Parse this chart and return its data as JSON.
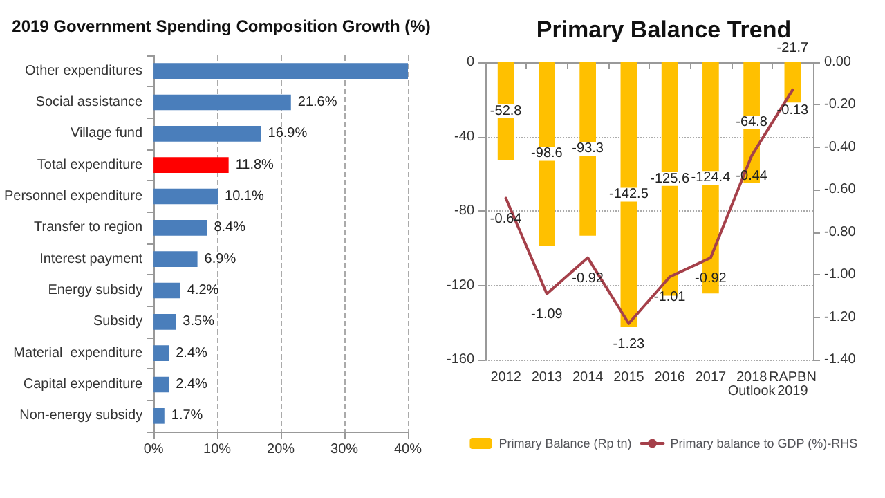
{
  "chart_data": [
    {
      "type": "bar",
      "title": "2019 Government Spending Composition Growth (%)",
      "orientation": "horizontal",
      "categories": [
        "Other expenditures",
        "Social assistance",
        "Village fund",
        "Total expenditure",
        "Personnel expenditure",
        "Transfer to region",
        "Interest payment",
        "Energy subsidy",
        "Subsidy",
        "Material  expenditure",
        "Capital expenditure",
        "Non-energy subsidy"
      ],
      "values": [
        40,
        21.6,
        16.9,
        11.8,
        10.1,
        8.4,
        6.9,
        4.2,
        3.5,
        2.4,
        2.4,
        1.7
      ],
      "colors": [
        "#4a7ebb",
        "#4a7ebb",
        "#4a7ebb",
        "#ff0000",
        "#4a7ebb",
        "#4a7ebb",
        "#4a7ebb",
        "#4a7ebb",
        "#4a7ebb",
        "#4a7ebb",
        "#4a7ebb",
        "#4a7ebb"
      ],
      "value_labels": [
        null,
        "21.6%",
        "16.9%",
        "11.8%",
        "10.1%",
        "8.4%",
        "6.9%",
        "4.2%",
        "3.5%",
        "2.4%",
        "2.4%",
        "1.7%"
      ],
      "xlim": [
        0,
        40
      ],
      "xticks": [
        {
          "value": 0,
          "label": "0%"
        },
        {
          "value": 10,
          "label": "10%"
        },
        {
          "value": 20,
          "label": "20%"
        },
        {
          "value": 30,
          "label": "30%"
        },
        {
          "value": 40,
          "label": "40%"
        }
      ],
      "grid": "x",
      "legend": false
    },
    {
      "type": "bar",
      "title": "Primary Balance Trend",
      "categories": [
        "2012",
        "2013",
        "2014",
        "2015",
        "2016",
        "2017",
        "2018\nOutlook",
        "RAPBN\n2019"
      ],
      "series": [
        {
          "name": "Primary Balance (Rp tn)",
          "type": "bar",
          "color": "#ffc000",
          "values": [
            -52.8,
            -98.6,
            -93.3,
            -142.5,
            -125.6,
            -124.4,
            -64.8,
            -21.7
          ]
        },
        {
          "name": "Primary balance to GDP (%)-RHS",
          "type": "line",
          "axis": "y2",
          "color": "#a5404a",
          "values": [
            -0.64,
            -1.09,
            -0.92,
            -1.23,
            -1.01,
            -0.92,
            -0.44,
            -0.13
          ]
        }
      ],
      "ylim": [
        -160,
        0
      ],
      "yticks": [
        -160,
        -120,
        -80,
        -40,
        0
      ],
      "y2lim": [
        -1.4,
        0
      ],
      "y2ticks": [
        {
          "value": -1.4,
          "label": "-1.40"
        },
        {
          "value": -1.2,
          "label": "-1.20"
        },
        {
          "value": -1,
          "label": "-1.00"
        },
        {
          "value": -0.8,
          "label": "-0.80"
        },
        {
          "value": -0.6,
          "label": "-0.60"
        },
        {
          "value": -0.4,
          "label": "-0.40"
        },
        {
          "value": -0.2,
          "label": "-0.20"
        },
        {
          "value": 0,
          "label": "0.00"
        }
      ],
      "data_labels": true,
      "grid": "y",
      "legend": "bottom",
      "marker": "none",
      "line_style": "solid"
    }
  ]
}
